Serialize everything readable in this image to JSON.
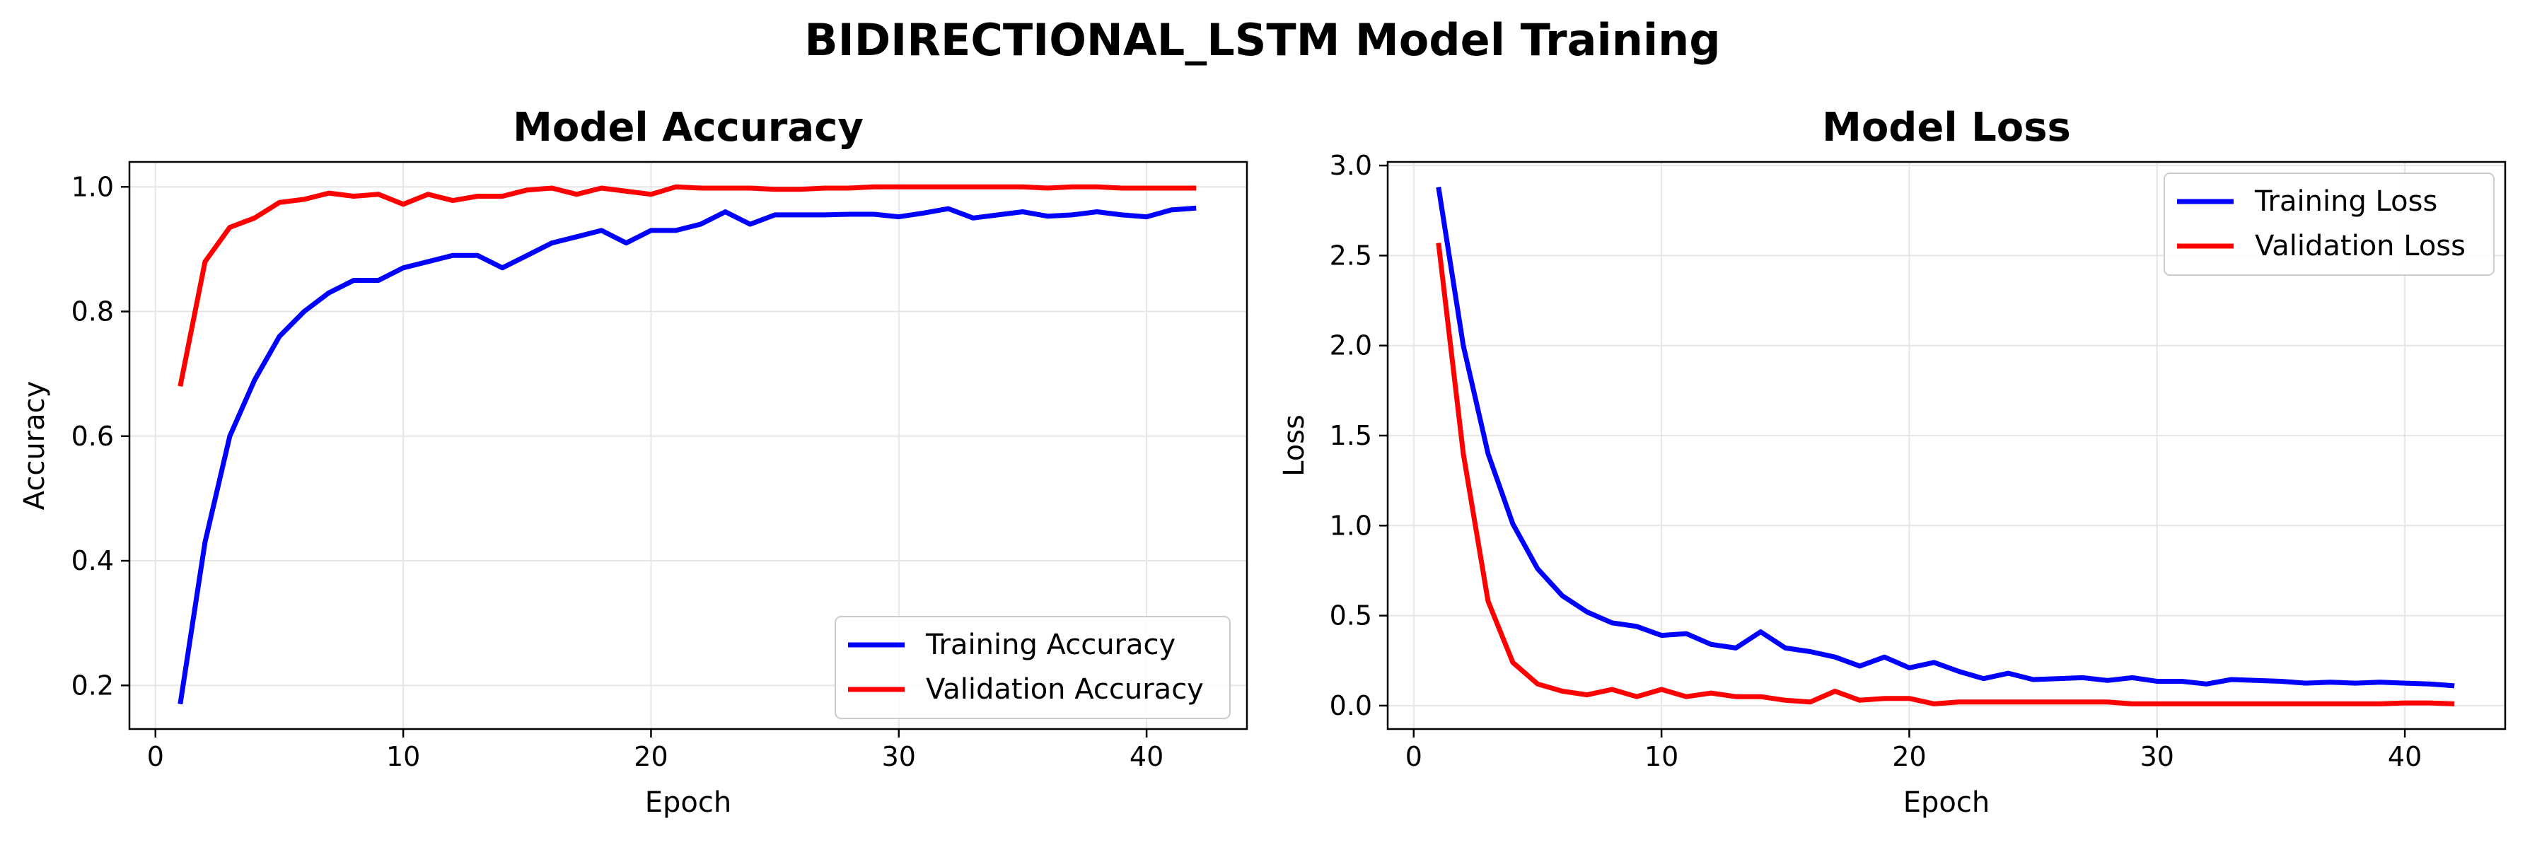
{
  "figure_title": "BIDIRECTIONAL_LSTM Model Training",
  "colors": {
    "training": "#0000ff",
    "validation": "#ff0000",
    "grid": "#e6e6e6",
    "axis": "#000000"
  },
  "chart_data": [
    {
      "type": "line",
      "title": "Model Accuracy",
      "xlabel": "Epoch",
      "ylabel": "Accuracy",
      "xlim": [
        -1.05,
        44.05
      ],
      "ylim": [
        0.13,
        1.04
      ],
      "xticks": [
        0,
        10,
        20,
        30,
        40
      ],
      "yticks": [
        0.2,
        0.4,
        0.6,
        0.8,
        1.0
      ],
      "ytick_labels": [
        "0.2",
        "0.4",
        "0.6",
        "0.8",
        "1.0"
      ],
      "grid": true,
      "legend_position": "lower-right",
      "x": [
        1,
        2,
        3,
        4,
        5,
        6,
        7,
        8,
        9,
        10,
        11,
        12,
        13,
        14,
        15,
        16,
        17,
        18,
        19,
        20,
        21,
        22,
        23,
        24,
        25,
        26,
        27,
        28,
        29,
        30,
        31,
        32,
        33,
        34,
        35,
        36,
        37,
        38,
        39,
        40,
        41,
        42
      ],
      "series": [
        {
          "name": "Training Accuracy",
          "color": "#0000ff",
          "values": [
            0.17,
            0.43,
            0.6,
            0.69,
            0.76,
            0.8,
            0.83,
            0.85,
            0.85,
            0.87,
            0.88,
            0.89,
            0.89,
            0.87,
            0.89,
            0.91,
            0.92,
            0.93,
            0.91,
            0.93,
            0.93,
            0.94,
            0.96,
            0.94,
            0.955,
            0.955,
            0.955,
            0.956,
            0.956,
            0.952,
            0.958,
            0.965,
            0.95,
            0.955,
            0.96,
            0.953,
            0.955,
            0.96,
            0.955,
            0.952,
            0.963,
            0.966
          ]
        },
        {
          "name": "Validation Accuracy",
          "color": "#ff0000",
          "values": [
            0.68,
            0.88,
            0.935,
            0.95,
            0.975,
            0.98,
            0.99,
            0.985,
            0.988,
            0.972,
            0.988,
            0.978,
            0.985,
            0.985,
            0.995,
            0.998,
            0.988,
            0.998,
            0.993,
            0.988,
            1.0,
            0.998,
            0.998,
            0.998,
            0.996,
            0.996,
            0.998,
            0.998,
            1.0,
            1.0,
            1.0,
            1.0,
            1.0,
            1.0,
            1.0,
            0.998,
            1.0,
            1.0,
            0.998,
            0.998,
            0.998,
            0.998
          ]
        }
      ]
    },
    {
      "type": "line",
      "title": "Model Loss",
      "xlabel": "Epoch",
      "ylabel": "Loss",
      "xlim": [
        -1.05,
        44.05
      ],
      "ylim": [
        -0.13,
        3.02
      ],
      "xticks": [
        0,
        10,
        20,
        30,
        40
      ],
      "yticks": [
        0.0,
        0.5,
        1.0,
        1.5,
        2.0,
        2.5,
        3.0
      ],
      "ytick_labels": [
        "0.0",
        "0.5",
        "1.0",
        "1.5",
        "2.0",
        "2.5",
        "3.0"
      ],
      "grid": true,
      "legend_position": "upper-right",
      "x": [
        1,
        2,
        3,
        4,
        5,
        6,
        7,
        8,
        9,
        10,
        11,
        12,
        13,
        14,
        15,
        16,
        17,
        18,
        19,
        20,
        21,
        22,
        23,
        24,
        25,
        26,
        27,
        28,
        29,
        30,
        31,
        32,
        33,
        34,
        35,
        36,
        37,
        38,
        39,
        40,
        41,
        42
      ],
      "series": [
        {
          "name": "Training Loss",
          "color": "#0000ff",
          "values": [
            2.88,
            2.0,
            1.4,
            1.01,
            0.76,
            0.61,
            0.52,
            0.46,
            0.44,
            0.39,
            0.4,
            0.34,
            0.32,
            0.41,
            0.32,
            0.3,
            0.27,
            0.22,
            0.27,
            0.21,
            0.24,
            0.19,
            0.15,
            0.18,
            0.145,
            0.15,
            0.155,
            0.14,
            0.155,
            0.135,
            0.135,
            0.12,
            0.145,
            0.14,
            0.135,
            0.125,
            0.13,
            0.125,
            0.13,
            0.125,
            0.12,
            0.11
          ]
        },
        {
          "name": "Validation Loss",
          "color": "#ff0000",
          "values": [
            2.57,
            1.4,
            0.58,
            0.24,
            0.12,
            0.08,
            0.06,
            0.09,
            0.05,
            0.09,
            0.05,
            0.07,
            0.05,
            0.05,
            0.03,
            0.02,
            0.08,
            0.03,
            0.04,
            0.04,
            0.01,
            0.02,
            0.02,
            0.02,
            0.02,
            0.02,
            0.02,
            0.02,
            0.01,
            0.01,
            0.01,
            0.01,
            0.01,
            0.01,
            0.01,
            0.01,
            0.01,
            0.01,
            0.01,
            0.015,
            0.015,
            0.01
          ]
        }
      ]
    }
  ]
}
